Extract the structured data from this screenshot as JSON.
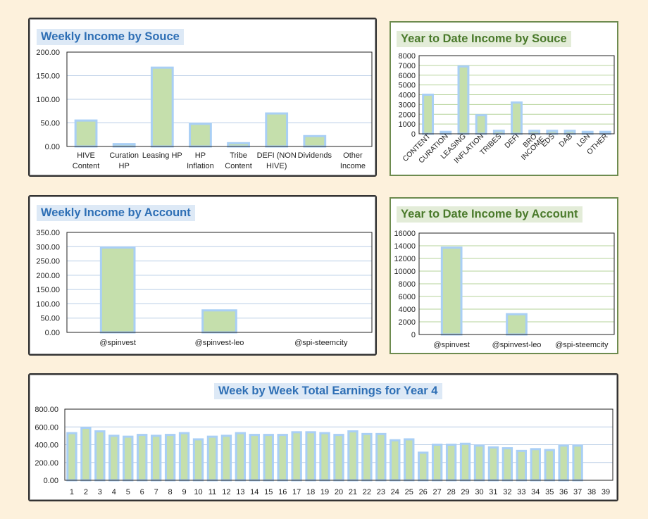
{
  "chart_data": [
    {
      "id": "weekly_source",
      "type": "bar",
      "title": "Weekly Income by Souce",
      "categories": [
        "HIVE Content",
        "Curation HP",
        "Leasing HP",
        "HP Inflation",
        "Tribe Content",
        "DEFI (NON HIVE)",
        "Dividends",
        "Other Income"
      ],
      "values": [
        55,
        5,
        167,
        48,
        7,
        70,
        22,
        0
      ],
      "ylim": [
        0,
        200
      ],
      "yticks": [
        "0.00",
        "50.00",
        "100.00",
        "150.00",
        "200.00"
      ],
      "grid": true
    },
    {
      "id": "ytd_source",
      "type": "bar",
      "title": "Year to Date Income by Souce",
      "categories": [
        "CONTENT",
        "CURATION",
        "LEASING",
        "INFLATION",
        "TRIBES",
        "DEFI",
        "BRO INCOME",
        "EDS",
        "DAB",
        "LGN",
        "OTHER"
      ],
      "values": [
        4000,
        200,
        6900,
        1900,
        300,
        3200,
        300,
        300,
        300,
        200,
        200
      ],
      "ylim": [
        0,
        8000
      ],
      "yticks": [
        "0",
        "1000",
        "2000",
        "3000",
        "4000",
        "5000",
        "6000",
        "7000",
        "8000"
      ],
      "grid": true
    },
    {
      "id": "weekly_account",
      "type": "bar",
      "title": "Weekly Income by Account",
      "categories": [
        "@spinvest",
        "@spinvest-leo",
        "@spi-steemcity"
      ],
      "values": [
        297,
        77,
        0
      ],
      "ylim": [
        0,
        350
      ],
      "yticks": [
        "0.00",
        "50.00",
        "100.00",
        "150.00",
        "200.00",
        "250.00",
        "300.00",
        "350.00"
      ],
      "grid": true
    },
    {
      "id": "ytd_account",
      "type": "bar",
      "title": "Year to Date Income by Account",
      "categories": [
        "@spinvest",
        "@spinvest-leo",
        "@spi-steemcity"
      ],
      "values": [
        13700,
        3200,
        0
      ],
      "ylim": [
        0,
        16000
      ],
      "yticks": [
        "0",
        "2000",
        "4000",
        "6000",
        "8000",
        "10000",
        "12000",
        "14000",
        "16000"
      ],
      "grid": true
    },
    {
      "id": "weekly_total",
      "type": "bar",
      "title": "Week by Week Total Earnings for Year 4",
      "categories": [
        "1",
        "2",
        "3",
        "4",
        "5",
        "6",
        "7",
        "8",
        "9",
        "10",
        "11",
        "12",
        "13",
        "14",
        "15",
        "16",
        "17",
        "18",
        "19",
        "20",
        "21",
        "22",
        "23",
        "24",
        "25",
        "26",
        "27",
        "28",
        "29",
        "30",
        "31",
        "32",
        "33",
        "34",
        "35",
        "36",
        "37",
        "38",
        "39"
      ],
      "values": [
        530,
        590,
        550,
        500,
        490,
        510,
        500,
        510,
        530,
        460,
        490,
        500,
        530,
        510,
        510,
        510,
        540,
        540,
        530,
        510,
        550,
        520,
        520,
        450,
        460,
        310,
        400,
        400,
        410,
        390,
        370,
        360,
        330,
        350,
        340,
        390,
        390,
        0,
        0
      ],
      "ylim": [
        0,
        800
      ],
      "yticks": [
        "0.00",
        "200.00",
        "400.00",
        "600.00",
        "800.00"
      ],
      "grid": true
    }
  ]
}
